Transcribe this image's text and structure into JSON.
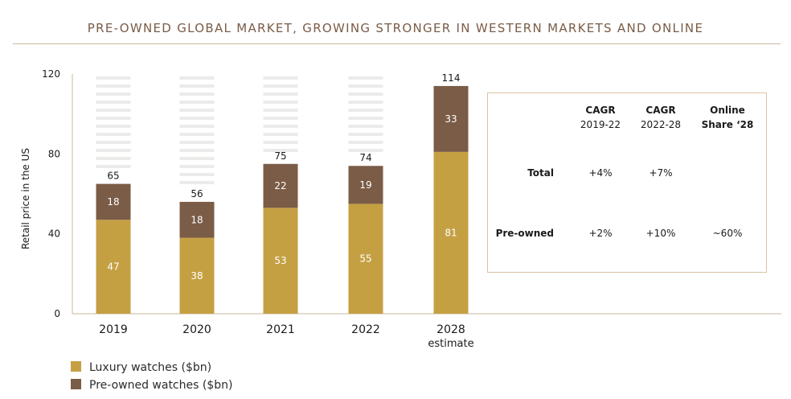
{
  "title": "PRE-OWNED GLOBAL MARKET, GROWING STRONGER IN WESTERN MARKETS AND ONLINE",
  "colors": {
    "luxury": "#c5a043",
    "preowned": "#7b5c47",
    "axis": "#c9b89f",
    "accent": "#7a5c47"
  },
  "chart_data": {
    "type": "bar",
    "stacked": true,
    "categories": [
      "2019",
      "2020",
      "2021",
      "2022",
      "2028\nestimate"
    ],
    "series": [
      {
        "name": "Luxury watches ($bn)",
        "values": [
          47,
          38,
          53,
          55,
          81
        ]
      },
      {
        "name": "Pre-owned watches ($bn)",
        "values": [
          18,
          18,
          22,
          19,
          33
        ]
      }
    ],
    "totals": [
      65,
      56,
      75,
      74,
      114
    ],
    "ylabel": "Retail price in the US",
    "ylim": [
      0,
      120
    ],
    "yticks": [
      0,
      40,
      80,
      120
    ],
    "legend": "bottom-left"
  },
  "cagr_table": {
    "headers": [
      {
        "line1": "CAGR",
        "line2": "2019-22"
      },
      {
        "line1": "CAGR",
        "line2": "2022-28"
      },
      {
        "line1": "Online",
        "line2": "Share ‘28"
      }
    ],
    "rows": [
      {
        "label": "Total",
        "values": [
          "+4%",
          "+7%",
          ""
        ]
      },
      {
        "label": "Pre-owned",
        "values": [
          "+2%",
          "+10%",
          "~60%"
        ]
      }
    ]
  },
  "legend": [
    {
      "label": "Luxury watches ($bn)"
    },
    {
      "label": "Pre-owned watches ($bn)"
    }
  ]
}
